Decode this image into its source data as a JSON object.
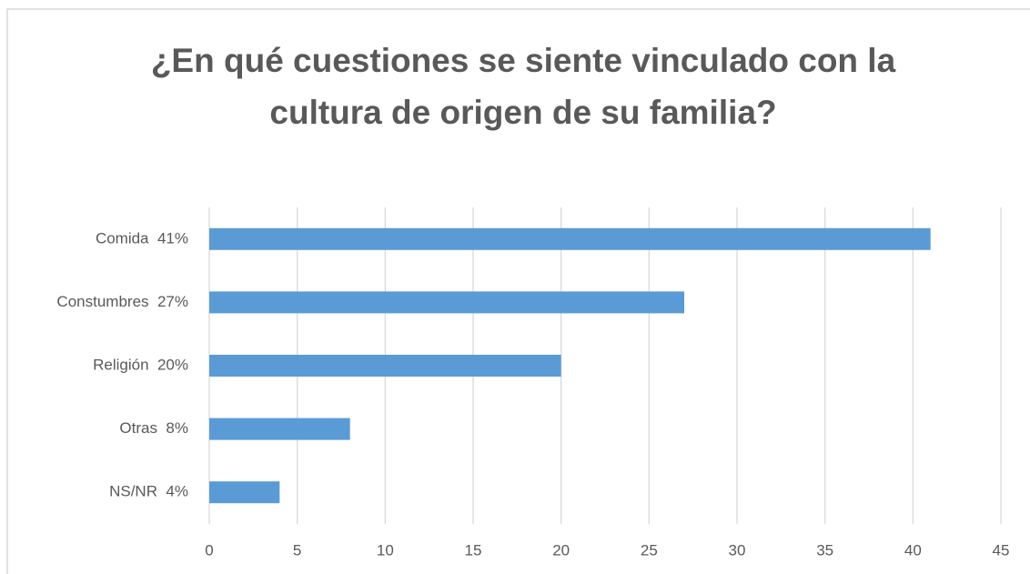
{
  "chart_data": {
    "type": "bar",
    "orientation": "horizontal",
    "title": "¿En qué cuestiones se siente vinculado con la cultura de origen de su familia?",
    "categories": [
      "Comida  41%",
      "Constumbres  27%",
      "Religión  20%",
      "Otras  8%",
      "NS/NR  4%"
    ],
    "values": [
      41,
      27,
      20,
      8,
      4
    ],
    "color": "#5b9bd5",
    "xlim": [
      0,
      45
    ],
    "xticks": [
      0,
      5,
      10,
      15,
      20,
      25,
      30,
      35,
      40,
      45
    ],
    "grid": true
  }
}
